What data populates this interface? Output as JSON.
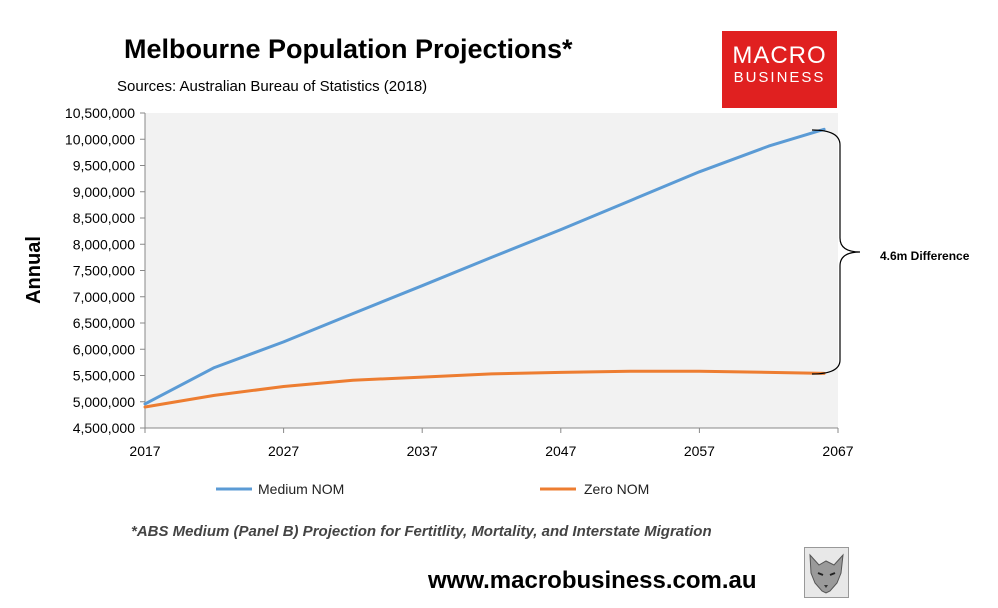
{
  "header": {
    "title": "Melbourne Population Projections*",
    "subtitle": "Sources: Australian Bureau of Statistics (2018)"
  },
  "logo": {
    "line1": "MACRO",
    "line2": "BUSINESS",
    "color": "#e02020"
  },
  "footer": {
    "footnote": "*ABS Medium (Panel B) Projection for Fertitlity, Mortality, and Interstate Migration",
    "website": "www.macrobusiness.com.au"
  },
  "chart_data": {
    "type": "line",
    "ylabel": "Annual",
    "xlim": [
      2017,
      2067
    ],
    "ylim": [
      4500000,
      10500000
    ],
    "x_ticks": [
      "2017",
      "2027",
      "2037",
      "2047",
      "2057",
      "2067"
    ],
    "y_ticks": [
      "4,500,000",
      "5,000,000",
      "5,500,000",
      "6,000,000",
      "6,500,000",
      "7,000,000",
      "7,500,000",
      "8,000,000",
      "8,500,000",
      "9,000,000",
      "9,500,000",
      "10,000,000",
      "10,500,000"
    ],
    "grid": false,
    "plot_background": "#f2f2f2",
    "legend_position": "bottom",
    "series": [
      {
        "name": "Medium NOM",
        "color": "#5b9bd5",
        "x": [
          2017,
          2022,
          2027,
          2032,
          2037,
          2042,
          2047,
          2052,
          2057,
          2062,
          2066
        ],
        "values": [
          4960000,
          5650000,
          6140000,
          6680000,
          7210000,
          7750000,
          8280000,
          8830000,
          9380000,
          9870000,
          10190000
        ]
      },
      {
        "name": "Zero NOM",
        "color": "#ed7d31",
        "x": [
          2017,
          2022,
          2027,
          2032,
          2037,
          2042,
          2047,
          2052,
          2057,
          2062,
          2066
        ],
        "values": [
          4900000,
          5120000,
          5290000,
          5410000,
          5470000,
          5530000,
          5560000,
          5580000,
          5580000,
          5560000,
          5540000
        ]
      }
    ],
    "annotations": [
      {
        "text": "4.6m Difference"
      }
    ]
  }
}
